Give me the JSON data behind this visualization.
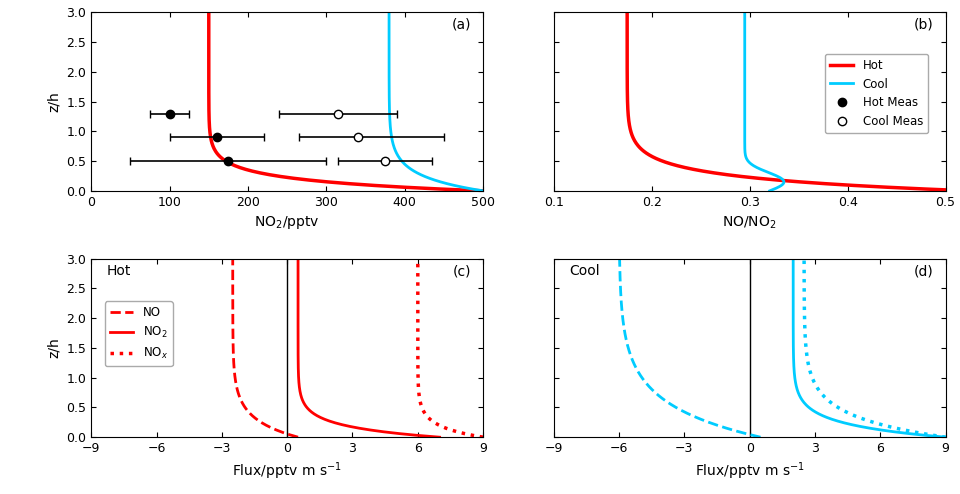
{
  "fig_width": 9.6,
  "fig_height": 4.94,
  "hot_color": "#ff0000",
  "cool_color": "#00ccff",
  "tick_fontsize": 9,
  "label_fontsize": 10,
  "panel_a": {
    "label": "(a)",
    "xlim": [
      0,
      500
    ],
    "ylim": [
      0,
      3.0
    ],
    "xticks": [
      0,
      100,
      200,
      300,
      400,
      500
    ],
    "yticks": [
      0.0,
      0.5,
      1.0,
      1.5,
      2.0,
      2.5,
      3.0
    ],
    "xlabel": "NO$_2$/pptv",
    "ylabel": "z/h"
  },
  "panel_b": {
    "label": "(b)",
    "xlim": [
      0.1,
      0.5
    ],
    "ylim": [
      0,
      3.0
    ],
    "xticks": [
      0.1,
      0.2,
      0.3,
      0.4,
      0.5
    ],
    "yticks": [
      0.0,
      0.5,
      1.0,
      1.5,
      2.0,
      2.5,
      3.0
    ],
    "xlabel": "NO/NO$_2$",
    "ylabel": ""
  },
  "panel_c": {
    "label": "(c)",
    "title": "Hot",
    "xlim": [
      -9,
      9
    ],
    "ylim": [
      0,
      3.0
    ],
    "xticks": [
      -9,
      -6,
      -3,
      0,
      3,
      6,
      9
    ],
    "yticks": [
      0.0,
      0.5,
      1.0,
      1.5,
      2.0,
      2.5,
      3.0
    ],
    "xlabel": "Flux/pptv m s$^{-1}$",
    "ylabel": "z/h"
  },
  "panel_d": {
    "label": "(d)",
    "title": "Cool",
    "xlim": [
      -9,
      9
    ],
    "ylim": [
      0,
      3.0
    ],
    "xticks": [
      -9,
      -6,
      -3,
      0,
      3,
      6,
      9
    ],
    "yticks": [
      0.0,
      0.5,
      1.0,
      1.5,
      2.0,
      2.5,
      3.0
    ],
    "xlabel": "Flux/pptv m s$^{-1}$",
    "ylabel": ""
  }
}
